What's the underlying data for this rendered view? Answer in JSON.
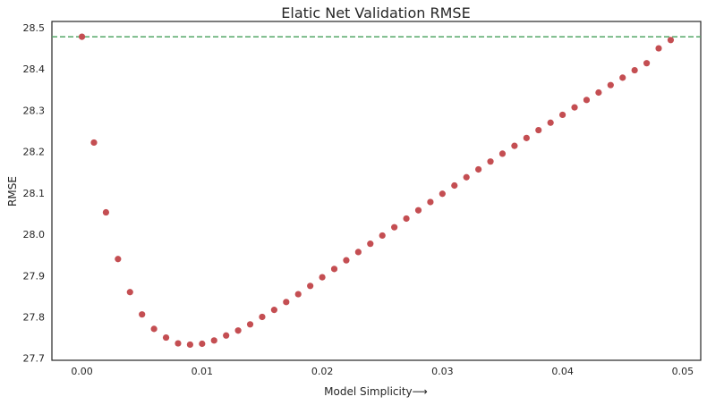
{
  "chart_data": {
    "type": "scatter",
    "title": "Elatic Net Validation RMSE",
    "xlabel": "Model Simplicity⟶",
    "ylabel": "RMSE",
    "xlim": [
      -0.0025,
      0.0515
    ],
    "ylim": [
      27.695,
      28.515
    ],
    "grid": false,
    "xticks": [
      0.0,
      0.01,
      0.02,
      0.03,
      0.04,
      0.05
    ],
    "xtick_labels": [
      "0.00",
      "0.01",
      "0.02",
      "0.03",
      "0.04",
      "0.05"
    ],
    "yticks": [
      27.7,
      27.8,
      27.9,
      28.0,
      28.1,
      28.2,
      28.3,
      28.4,
      28.5
    ],
    "ytick_labels": [
      "27.7",
      "27.8",
      "27.9",
      "28.0",
      "28.1",
      "28.2",
      "28.3",
      "28.4",
      "28.5"
    ],
    "reference_line": {
      "y": 28.478,
      "style": "dashed",
      "color": "#55a868"
    },
    "point_color": "#c44e52",
    "x": [
      0.0,
      0.001,
      0.002,
      0.003,
      0.004,
      0.005,
      0.006,
      0.007,
      0.008,
      0.009,
      0.01,
      0.011,
      0.012,
      0.013,
      0.014,
      0.015,
      0.016,
      0.017,
      0.018,
      0.019,
      0.02,
      0.021,
      0.022,
      0.023,
      0.024,
      0.025,
      0.026,
      0.027,
      0.028,
      0.029,
      0.03,
      0.031,
      0.032,
      0.033,
      0.034,
      0.035,
      0.036,
      0.037,
      0.038,
      0.039,
      0.04,
      0.041,
      0.042,
      0.043,
      0.044,
      0.045,
      0.046,
      0.047,
      0.048,
      0.049
    ],
    "y": [
      28.478,
      28.222,
      28.053,
      27.94,
      27.86,
      27.806,
      27.771,
      27.75,
      27.736,
      27.733,
      27.735,
      27.743,
      27.755,
      27.767,
      27.782,
      27.8,
      27.817,
      27.836,
      27.855,
      27.875,
      27.896,
      27.916,
      27.937,
      27.957,
      27.977,
      27.997,
      28.017,
      28.038,
      28.058,
      28.078,
      28.098,
      28.118,
      28.138,
      28.157,
      28.176,
      28.195,
      28.214,
      28.233,
      28.252,
      28.27,
      28.289,
      28.307,
      28.325,
      28.343,
      28.361,
      28.379,
      28.397,
      28.414,
      28.45,
      28.47
    ]
  }
}
